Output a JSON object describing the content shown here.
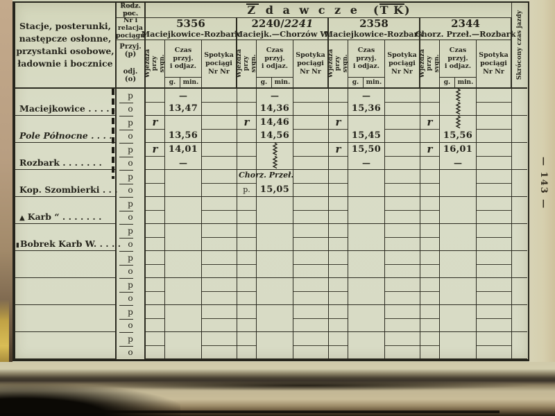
{
  "page": {
    "number_vertical": "— 143 —"
  },
  "table": {
    "title": {
      "z": "Z",
      "rest": "d a w c z e",
      "open": "(",
      "tk": "T K",
      "close": ")"
    },
    "corner_lines": [
      "Stacje, posterunki,",
      "następcze osłonne,",
      "przystanki osobowe,",
      "ładownie i bocznice"
    ],
    "rodz_poc": "Rodz. poc.",
    "nr_relacja_lines": [
      "Nr i",
      "relacja",
      "pociągu"
    ],
    "przyj": "Przyj.(p)",
    "odj": "odj. (o)",
    "skrocony": "Skrócony czas jazdy",
    "sub": {
      "wjezdza": "Wjeżdża przy sygn.",
      "czas_lines": [
        "Czas",
        "przyj.",
        "i odjaz."
      ],
      "g": "g.",
      "min": "min.",
      "spot_lines": [
        "Spotyka",
        "pociągi",
        "Nr Nr"
      ]
    },
    "trains": [
      {
        "number": "5356",
        "number_italic": "",
        "route": "Maciejkowice-Rozbark"
      },
      {
        "number": "2240/",
        "number_italic": "2241",
        "route": "Maciejk.—Chorzów W."
      },
      {
        "number": "2358",
        "number_italic": "",
        "route": "Maciejkowice-Rozbark"
      },
      {
        "number": "2344",
        "number_italic": "",
        "route": "Chorz. Przeł.—Rozbark"
      }
    ],
    "po": {
      "p": "p",
      "o": "o"
    },
    "rows": [
      {
        "station": "Maciejkowice . . . . .",
        "marker": "",
        "italic": false,
        "cells": [
          {
            "czas_p": "—",
            "czas_o": "13,47"
          },
          {
            "czas_p": "—",
            "czas_o": "14,36"
          },
          {
            "czas_p": "—",
            "czas_o": "15,36"
          },
          {
            "czas_p": "~",
            "czas_o": "~"
          }
        ]
      },
      {
        "station": "Pole Północne . . . .",
        "marker": "",
        "italic": true,
        "cells": [
          {
            "wj_p": "r",
            "czas_o": "13,56"
          },
          {
            "wj_p": "r",
            "czas_p": "14,46",
            "czas_o": "14,56"
          },
          {
            "wj_p": "r",
            "czas_o": "15,45"
          },
          {
            "wj_p": "r",
            "czas_p": "~",
            "czas_o": "15,56"
          }
        ]
      },
      {
        "station": "Rozbark  . . . . . . .",
        "marker": "",
        "italic": false,
        "cells": [
          {
            "wj_p": "r",
            "czas_p": "14,01",
            "czas_o": "—"
          },
          {
            "czas_p": "~",
            "czas_o": "~"
          },
          {
            "wj_p": "r",
            "czas_p": "15,50",
            "czas_o": "—"
          },
          {
            "wj_p": "r",
            "czas_p": "16,01",
            "czas_o": "—"
          }
        ]
      },
      {
        "station": "Kop. Szombierki  . . .",
        "marker": "",
        "italic": false,
        "cells": [
          {},
          {
            "note_p": "Chorz. Przeł.",
            "wj_o": "p.",
            "czas_o": "15,05"
          },
          {},
          {}
        ]
      },
      {
        "station": "Karb “ . . . . . . .",
        "marker": "▲",
        "italic": false,
        "cells": [
          {},
          {},
          {},
          {}
        ]
      },
      {
        "station": "Bobrek Karb W. . . . .",
        "marker": "▮",
        "italic": false,
        "cells": [
          {},
          {},
          {},
          {}
        ]
      },
      {
        "station": "",
        "marker": "",
        "italic": false,
        "cells": [
          {},
          {},
          {},
          {}
        ]
      },
      {
        "station": "",
        "marker": "",
        "italic": false,
        "cells": [
          {},
          {},
          {},
          {}
        ]
      },
      {
        "station": "",
        "marker": "",
        "italic": false,
        "cells": [
          {},
          {},
          {},
          {}
        ]
      },
      {
        "station": "",
        "marker": "",
        "italic": false,
        "cells": [
          {},
          {},
          {},
          {}
        ]
      }
    ]
  }
}
